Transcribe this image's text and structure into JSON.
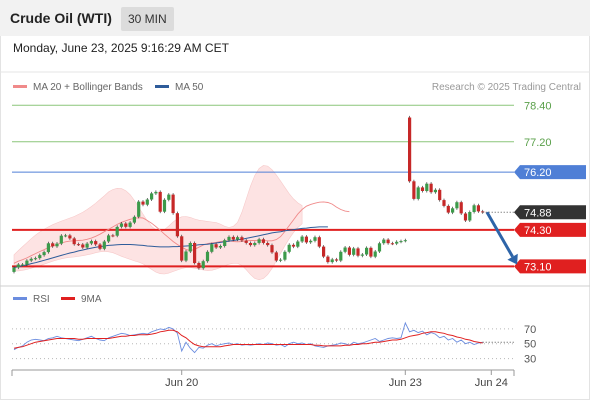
{
  "header": {
    "title": "Crude Oil (WTI)",
    "timeframe": "30 MIN"
  },
  "datetime": "Monday, June 23, 2025 9:16:29 AM CET",
  "colors": {
    "bull": "#3c9a4a",
    "bear": "#c62828",
    "ma50": "#2e5c9a",
    "ma20": "#f08a8a",
    "band": "#fde0e0",
    "rsi": "#6b8ddf",
    "rsi_ma": "#e02020",
    "level_red": "#e02020",
    "level_green": "#8bc57a",
    "level_blue": "#4f7fd6",
    "arrow": "#2d64a8"
  },
  "chart_data": [
    {
      "type": "candlestick",
      "legend": [
        {
          "label": "MA 20 + Bollinger Bands",
          "color": "#f08a8a"
        },
        {
          "label": "MA 50",
          "color": "#2e5c9a"
        }
      ],
      "credit": "Research © 2025 Trading Central",
      "ylim": [
        72.52,
        78.64
      ],
      "x_ticks": [
        {
          "label": "Jun 20",
          "index": 39
        },
        {
          "label": "Jun 23",
          "index": 91
        },
        {
          "label": "Jun 24",
          "index": 111
        }
      ],
      "levels": [
        {
          "value": 78.4,
          "label": "78.40",
          "style": "green"
        },
        {
          "value": 77.2,
          "label": "77.20",
          "style": "green"
        },
        {
          "value": 76.2,
          "label": "76.20",
          "style": "blue"
        },
        {
          "value": 74.3,
          "label": "74.30",
          "style": "red"
        },
        {
          "value": 73.1,
          "label": "73.10",
          "style": "red"
        }
      ],
      "last_price": {
        "value": 74.88,
        "label": "74.88"
      },
      "forecast_arrow": {
        "from": {
          "index": 110,
          "value": 74.88
        },
        "to": {
          "index": 117,
          "value": 73.16
        }
      },
      "candles": [
        [
          72.92,
          73.06
        ],
        [
          73.06,
          73.16
        ],
        [
          73.16,
          73.16
        ],
        [
          73.16,
          73.29
        ],
        [
          73.29,
          73.35
        ],
        [
          73.35,
          73.37
        ],
        [
          73.37,
          73.47
        ],
        [
          73.47,
          73.57
        ],
        [
          73.57,
          73.86
        ],
        [
          73.86,
          73.76
        ],
        [
          73.76,
          73.85
        ],
        [
          73.85,
          74.11
        ],
        [
          74.11,
          74.12
        ],
        [
          74.12,
          74.02
        ],
        [
          74.02,
          73.83
        ],
        [
          73.83,
          73.82
        ],
        [
          73.82,
          73.72
        ],
        [
          73.72,
          73.85
        ],
        [
          73.85,
          73.93
        ],
        [
          73.93,
          73.82
        ],
        [
          73.82,
          73.68
        ],
        [
          73.68,
          73.92
        ],
        [
          73.92,
          74.12
        ],
        [
          74.12,
          74.11
        ],
        [
          74.11,
          74.4
        ],
        [
          74.4,
          74.51
        ],
        [
          74.51,
          74.4
        ],
        [
          74.4,
          74.54
        ],
        [
          74.54,
          74.73
        ],
        [
          74.73,
          75.23
        ],
        [
          75.23,
          75.13
        ],
        [
          75.13,
          75.3
        ],
        [
          75.3,
          75.5
        ],
        [
          75.5,
          75.55
        ],
        [
          75.55,
          74.9
        ],
        [
          74.9,
          75.29
        ],
        [
          75.29,
          75.46
        ],
        [
          75.46,
          74.85
        ],
        [
          74.85,
          74.09
        ],
        [
          74.09,
          73.29
        ],
        [
          73.29,
          73.59
        ],
        [
          73.59,
          73.87
        ],
        [
          73.87,
          73.21
        ],
        [
          73.21,
          73.04
        ],
        [
          73.04,
          73.27
        ],
        [
          73.27,
          73.58
        ],
        [
          73.58,
          73.83
        ],
        [
          73.83,
          73.72
        ],
        [
          73.72,
          73.77
        ],
        [
          73.77,
          73.96
        ],
        [
          73.96,
          74.07
        ],
        [
          74.07,
          73.98
        ],
        [
          73.98,
          74.06
        ],
        [
          74.06,
          73.95
        ],
        [
          73.95,
          73.87
        ],
        [
          73.87,
          73.8
        ],
        [
          73.8,
          73.87
        ],
        [
          73.87,
          73.99
        ],
        [
          73.99,
          73.87
        ],
        [
          73.87,
          73.8
        ],
        [
          73.8,
          73.56
        ],
        [
          73.56,
          73.29
        ],
        [
          73.29,
          73.32
        ],
        [
          73.32,
          73.58
        ],
        [
          73.58,
          73.81
        ],
        [
          73.81,
          73.75
        ],
        [
          73.75,
          73.92
        ],
        [
          73.92,
          74.08
        ],
        [
          74.08,
          73.89
        ],
        [
          73.89,
          73.94
        ],
        [
          73.94,
          74.06
        ],
        [
          74.06,
          73.75
        ],
        [
          73.75,
          73.42
        ],
        [
          73.42,
          73.24
        ],
        [
          73.24,
          73.33
        ],
        [
          73.33,
          73.29
        ],
        [
          73.29,
          73.58
        ],
        [
          73.58,
          73.72
        ],
        [
          73.72,
          73.48
        ],
        [
          73.48,
          73.69
        ],
        [
          73.69,
          73.45
        ],
        [
          73.45,
          73.49
        ],
        [
          73.49,
          73.71
        ],
        [
          73.71,
          73.42
        ],
        [
          73.42,
          73.59
        ],
        [
          73.59,
          73.86
        ],
        [
          73.86,
          73.98
        ],
        [
          73.98,
          73.86
        ],
        [
          73.86,
          73.85
        ],
        [
          73.85,
          73.91
        ],
        [
          73.91,
          73.93
        ],
        [
          73.94,
          73.96
        ],
        [
          78.0,
          75.9
        ],
        [
          75.9,
          75.32
        ],
        [
          75.32,
          75.7
        ],
        [
          75.7,
          75.58
        ],
        [
          75.58,
          75.82
        ],
        [
          75.82,
          75.54
        ],
        [
          75.54,
          75.62
        ],
        [
          75.62,
          75.28
        ],
        [
          75.28,
          75.09
        ],
        [
          75.09,
          74.87
        ],
        [
          74.87,
          75.01
        ],
        [
          75.01,
          75.21
        ],
        [
          75.21,
          74.84
        ],
        [
          74.84,
          74.61
        ],
        [
          74.61,
          74.89
        ],
        [
          74.89,
          75.11
        ],
        [
          75.11,
          74.91
        ],
        [
          74.91,
          74.88
        ]
      ],
      "ma20": [
        73.2,
        73.27,
        73.32,
        73.38,
        73.45,
        73.52,
        73.59,
        73.65,
        73.72,
        73.77,
        73.82,
        73.87,
        73.91,
        73.93,
        73.94,
        73.95,
        73.96,
        73.99,
        74.03,
        74.09,
        74.16,
        74.24,
        74.32,
        74.4,
        74.48,
        74.55,
        74.6,
        74.65,
        74.68,
        74.7,
        74.69,
        74.61,
        74.52,
        74.41,
        74.29,
        74.16,
        74.04,
        73.92,
        73.82,
        73.73,
        73.66,
        73.62,
        73.66,
        73.73,
        73.8,
        73.85,
        73.87,
        73.89,
        73.92,
        73.93,
        73.94,
        73.92,
        73.91,
        73.92,
        73.94,
        73.95,
        73.95,
        73.96,
        73.95,
        73.94,
        73.94,
        73.98,
        74.08,
        74.25,
        74.44,
        74.63,
        74.82,
        74.97,
        75.08,
        75.14,
        75.18,
        75.21,
        75.22,
        75.2,
        75.15,
        75.05,
        74.97,
        74.92,
        74.9
      ],
      "ma50": [
        73.06,
        73.09,
        73.12,
        73.15,
        73.19,
        73.22,
        73.26,
        73.3,
        73.34,
        73.38,
        73.42,
        73.46,
        73.5,
        73.54,
        73.57,
        73.61,
        73.64,
        73.67,
        73.7,
        73.73,
        73.75,
        73.77,
        73.79,
        73.8,
        73.81,
        73.82,
        73.82,
        73.82,
        73.81,
        73.8,
        73.79,
        73.77,
        73.76,
        73.75,
        73.74,
        73.74,
        73.74,
        73.75,
        73.75,
        73.76,
        73.77,
        73.78,
        73.79,
        73.81,
        73.82,
        73.83,
        73.85,
        73.87,
        73.89,
        73.91,
        73.93,
        73.95,
        73.97,
        73.99,
        74.02,
        74.05,
        74.08,
        74.11,
        74.14,
        74.17,
        74.2,
        74.22,
        74.24,
        74.27,
        74.29,
        74.31,
        74.33,
        74.35,
        74.36,
        74.38,
        74.39,
        74.4,
        74.4,
        74.4
      ],
      "upper_band": [
        73.48,
        73.62,
        73.75,
        73.88,
        74.01,
        74.13,
        74.23,
        74.32,
        74.4,
        74.47,
        74.53,
        74.59,
        74.64,
        74.69,
        74.74,
        74.81,
        74.88,
        74.97,
        75.07,
        75.18,
        75.3,
        75.42,
        75.55,
        75.63,
        75.67,
        75.66,
        75.59,
        75.46,
        75.27,
        75.05,
        74.82,
        74.6,
        74.42,
        74.3,
        74.26,
        74.31,
        74.43,
        74.56,
        74.67,
        74.73,
        74.74,
        74.71,
        74.66,
        74.62,
        74.6,
        74.58,
        74.56,
        74.54,
        74.49,
        74.42,
        74.38,
        74.42,
        74.55,
        74.88,
        75.31,
        75.74,
        76.09,
        76.32,
        76.42,
        76.4,
        76.28,
        76.11,
        75.91,
        75.7,
        75.49,
        75.32,
        75.19,
        75.1
      ],
      "lower_band": [
        72.95,
        72.95,
        72.97,
        73.0,
        73.04,
        73.08,
        73.12,
        73.17,
        73.22,
        73.27,
        73.31,
        73.35,
        73.38,
        73.4,
        73.41,
        73.43,
        73.45,
        73.48,
        73.51,
        73.55,
        73.58,
        73.59,
        73.58,
        73.55,
        73.49,
        73.43,
        73.38,
        73.33,
        73.28,
        73.24,
        73.18,
        73.09,
        73.0,
        72.91,
        72.86,
        72.85,
        72.88,
        72.93,
        72.98,
        73.03,
        73.06,
        73.06,
        73.04,
        73.01,
        72.98,
        72.96,
        72.97,
        73.01,
        73.06,
        73.12,
        73.17,
        73.2,
        73.2,
        73.13,
        72.99,
        72.83,
        72.7,
        72.66,
        72.7,
        72.83,
        73.03,
        73.28,
        73.53,
        73.78,
        74.01,
        74.21,
        74.38,
        74.5
      ]
    },
    {
      "type": "line",
      "legend": [
        {
          "label": "RSI",
          "color": "#6b8ddf"
        },
        {
          "label": "9MA",
          "color": "#e02020"
        }
      ],
      "ylim": [
        20,
        90
      ],
      "y_ticks": [
        {
          "value": 70,
          "label": "70"
        },
        {
          "value": 50,
          "label": "50"
        },
        {
          "value": 30,
          "label": "30"
        }
      ],
      "rsi": [
        42,
        45,
        47,
        52,
        55,
        56,
        55,
        54,
        57,
        58,
        60,
        58,
        57,
        56,
        55,
        54,
        56,
        58,
        60,
        57,
        55,
        54,
        58,
        60,
        62,
        64,
        63,
        61,
        62,
        63,
        64,
        63,
        66,
        68,
        70,
        69,
        72,
        70,
        64,
        40,
        52,
        44,
        38,
        45,
        44,
        48,
        50,
        47,
        49,
        50,
        51,
        49,
        50,
        48,
        49,
        48,
        49,
        50,
        49,
        51,
        50,
        48,
        49,
        46,
        50,
        52,
        50,
        51,
        49,
        50,
        47,
        46,
        45,
        47,
        48,
        49,
        51,
        50,
        48,
        52,
        50,
        51,
        53,
        55,
        57,
        53,
        55,
        57,
        58,
        57,
        58,
        78,
        66,
        68,
        65,
        67,
        62,
        65,
        63,
        58,
        60,
        55,
        57,
        52,
        55,
        50,
        52,
        49,
        51,
        52
      ],
      "rsi_ma": [
        44,
        45,
        46,
        48,
        50,
        52,
        53,
        54,
        55,
        56,
        57,
        57,
        57,
        57,
        57,
        56,
        56,
        57,
        57,
        57,
        57,
        57,
        57,
        58,
        59,
        60,
        60,
        61,
        61,
        62,
        62,
        62,
        63,
        64,
        66,
        67,
        68,
        68,
        66,
        61,
        58,
        53,
        49,
        47,
        46,
        46,
        46,
        46,
        46,
        47,
        48,
        49,
        49,
        49,
        49,
        49,
        49,
        49,
        49,
        49,
        49,
        49,
        49,
        49,
        49,
        49,
        49,
        49,
        49,
        49,
        48,
        48,
        47,
        47,
        47,
        47,
        47,
        48,
        48,
        49,
        49,
        50,
        50,
        51,
        52,
        52,
        53,
        54,
        55,
        55,
        56,
        58,
        60,
        61,
        62,
        64,
        65,
        66,
        66,
        65,
        64,
        62,
        61,
        59,
        58,
        56,
        55,
        53,
        52,
        51
      ]
    }
  ]
}
